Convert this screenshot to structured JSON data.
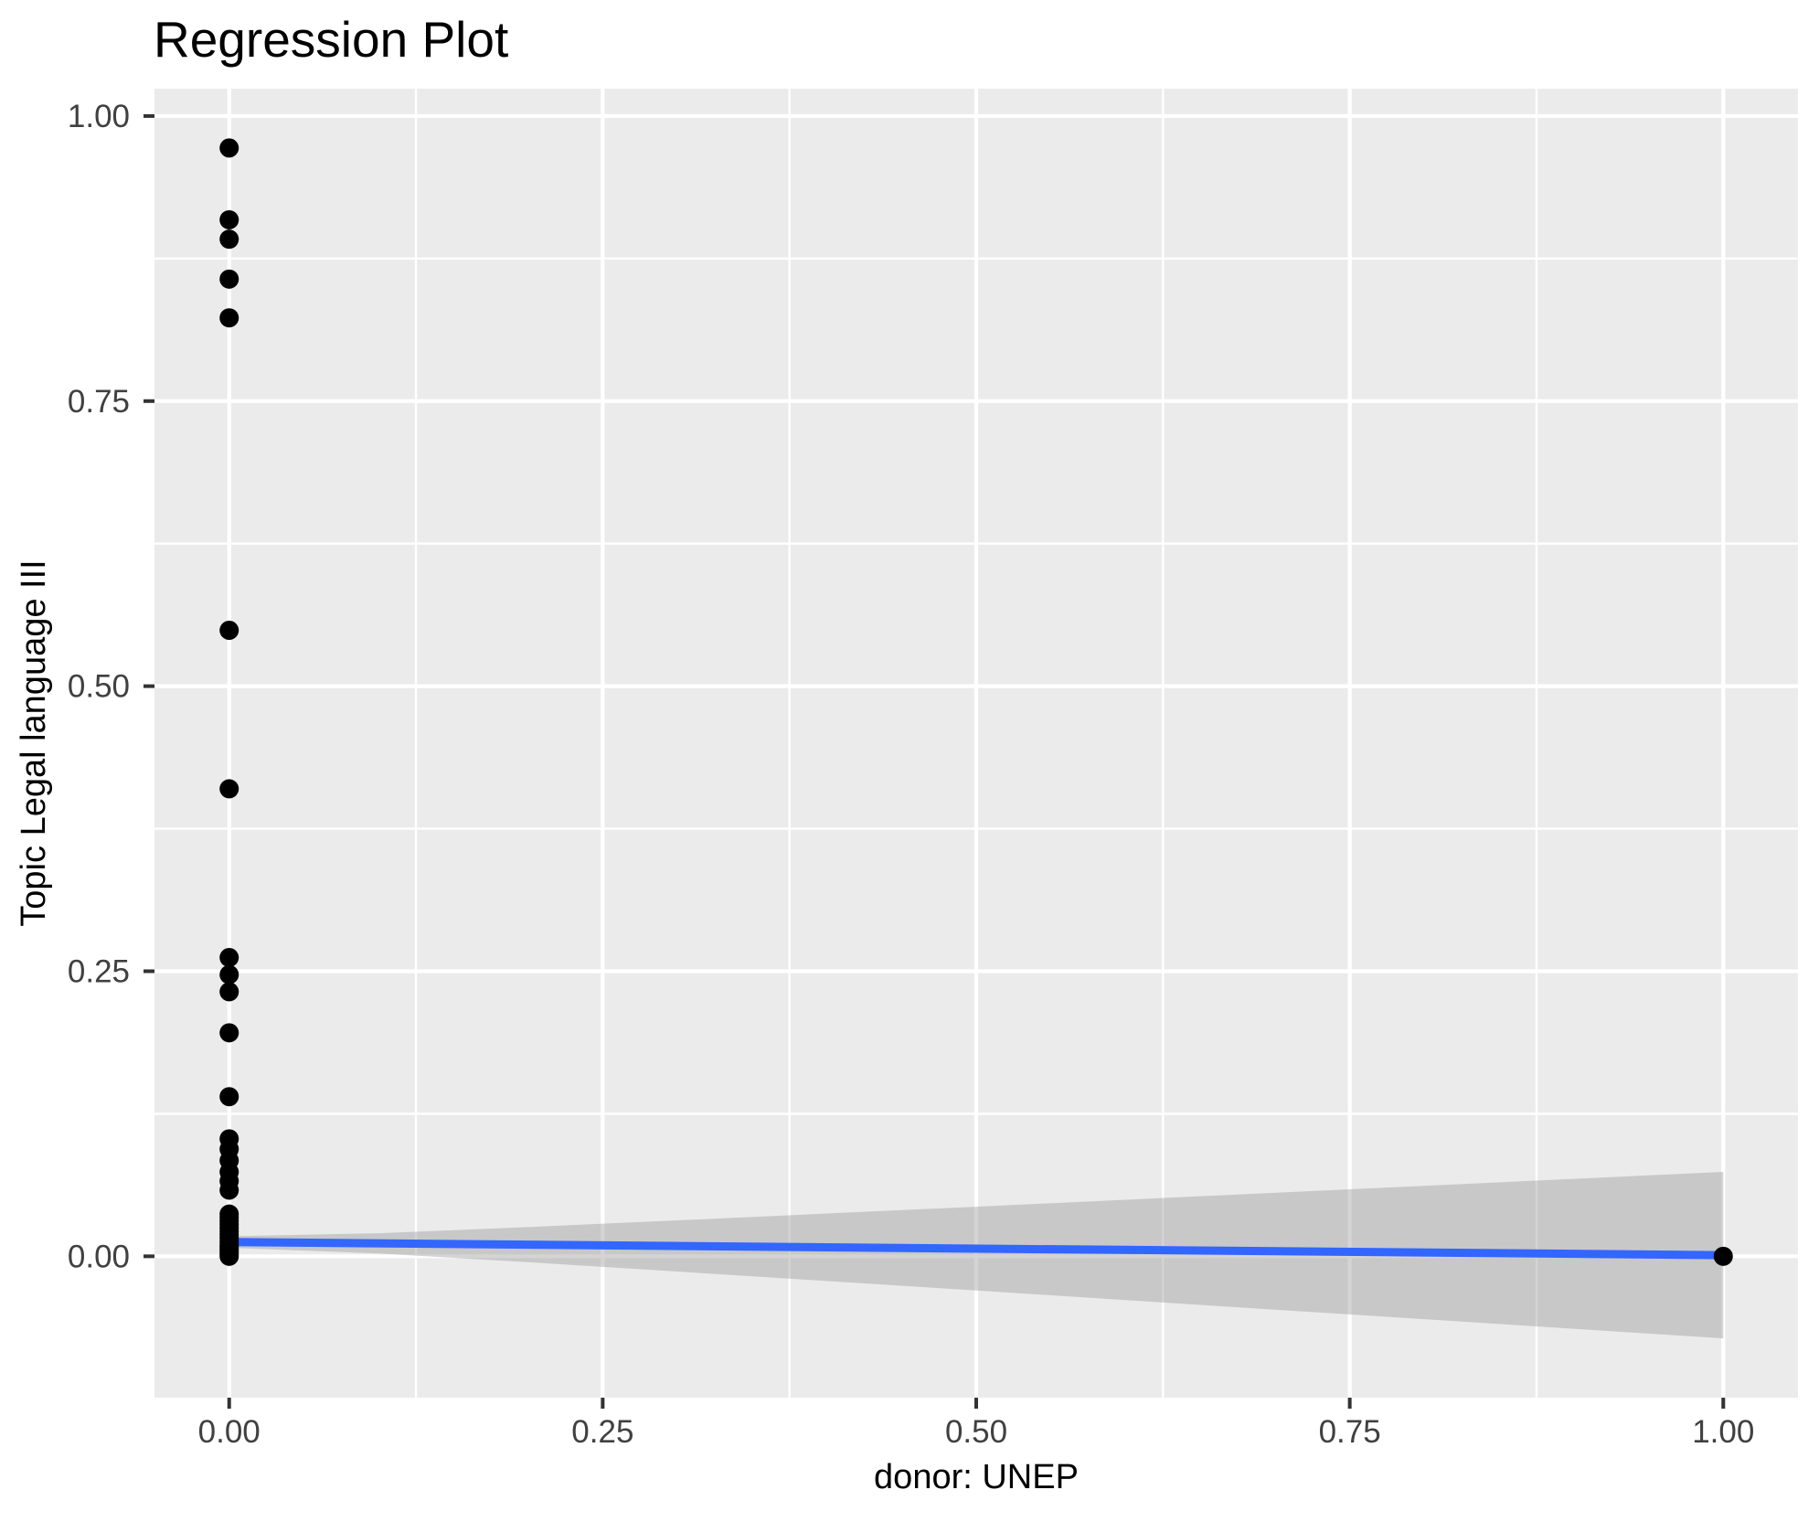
{
  "title": "Regression Plot",
  "x_axis": {
    "title": "donor: UNEP",
    "tick_labels": [
      "0.00",
      "0.25",
      "0.50",
      "0.75",
      "1.00"
    ]
  },
  "y_axis": {
    "title": "Topic Legal language III",
    "tick_labels": [
      "0.00",
      "0.25",
      "0.50",
      "0.75",
      "1.00"
    ]
  },
  "chart_data": {
    "type": "scatter",
    "title": "Regression Plot",
    "xlabel": "donor: UNEP",
    "ylabel": "Topic Legal language III",
    "xlim": [
      -0.05,
      1.05
    ],
    "ylim": [
      -0.124,
      1.024
    ],
    "x_ticks": [
      {
        "label": "0.00",
        "value": 0.0
      },
      {
        "label": "0.25",
        "value": 0.25
      },
      {
        "label": "0.50",
        "value": 0.5
      },
      {
        "label": "0.75",
        "value": 0.75
      },
      {
        "label": "1.00",
        "value": 1.0
      }
    ],
    "y_ticks": [
      {
        "label": "0.00",
        "value": 0.0
      },
      {
        "label": "0.25",
        "value": 0.25
      },
      {
        "label": "0.50",
        "value": 0.5
      },
      {
        "label": "0.75",
        "value": 0.75
      },
      {
        "label": "1.00",
        "value": 1.0
      }
    ],
    "x_minor_ticks": [
      0.125,
      0.375,
      0.625,
      0.875
    ],
    "y_minor_ticks": [
      0.125,
      0.375,
      0.625,
      0.875
    ],
    "grid": true,
    "legend": "none",
    "points": [
      {
        "x": 0,
        "y": 0.972
      },
      {
        "x": 0,
        "y": 0.909
      },
      {
        "x": 0,
        "y": 0.892
      },
      {
        "x": 0,
        "y": 0.857
      },
      {
        "x": 0,
        "y": 0.823
      },
      {
        "x": 0,
        "y": 0.549
      },
      {
        "x": 0,
        "y": 0.41
      },
      {
        "x": 0,
        "y": 0.262
      },
      {
        "x": 0,
        "y": 0.247
      },
      {
        "x": 0,
        "y": 0.232
      },
      {
        "x": 0,
        "y": 0.196
      },
      {
        "x": 0,
        "y": 0.14
      },
      {
        "x": 0,
        "y": 0.103
      },
      {
        "x": 0,
        "y": 0.094
      },
      {
        "x": 0,
        "y": 0.084
      },
      {
        "x": 0,
        "y": 0.074
      },
      {
        "x": 0,
        "y": 0.066
      },
      {
        "x": 0,
        "y": 0.058
      },
      {
        "x": 0,
        "y": 0.037
      },
      {
        "x": 0,
        "y": 0.034
      },
      {
        "x": 0,
        "y": 0.031
      },
      {
        "x": 0,
        "y": 0.028
      },
      {
        "x": 0,
        "y": 0.025
      },
      {
        "x": 0,
        "y": 0.022
      },
      {
        "x": 0,
        "y": 0.019
      },
      {
        "x": 0,
        "y": 0.016
      },
      {
        "x": 0,
        "y": 0.013
      },
      {
        "x": 0,
        "y": 0.01
      },
      {
        "x": 0,
        "y": 0.008
      },
      {
        "x": 0,
        "y": 0.006
      },
      {
        "x": 0,
        "y": 0.004
      },
      {
        "x": 0,
        "y": 0.002
      },
      {
        "x": 0,
        "y": 0.0
      },
      {
        "x": 1,
        "y": 0.0
      }
    ],
    "regression_line": {
      "x": [
        0.0,
        1.0
      ],
      "y": [
        0.0125,
        0.001
      ]
    },
    "ci_band": {
      "x": [
        0.0,
        0.1,
        0.2,
        0.3,
        0.4,
        0.5,
        0.6,
        0.7,
        0.8,
        0.9,
        1.0
      ],
      "upper": [
        0.0175,
        0.0202,
        0.0256,
        0.0315,
        0.0375,
        0.0435,
        0.0496,
        0.0557,
        0.0618,
        0.0679,
        0.074
      ],
      "lower": [
        0.0075,
        0.0025,
        -0.0052,
        -0.0134,
        -0.0217,
        -0.03,
        -0.0384,
        -0.0468,
        -0.0552,
        -0.0636,
        -0.072
      ]
    },
    "colors": {
      "panel_bg": "#EBEBEB",
      "grid": "#FFFFFF",
      "point": "#000000",
      "line": "#3366FF",
      "ribbon": "#999999",
      "ribbon_opacity": 0.42,
      "tick_text": "#404040",
      "tick_mark": "#333333",
      "title_text": "#000000"
    }
  }
}
